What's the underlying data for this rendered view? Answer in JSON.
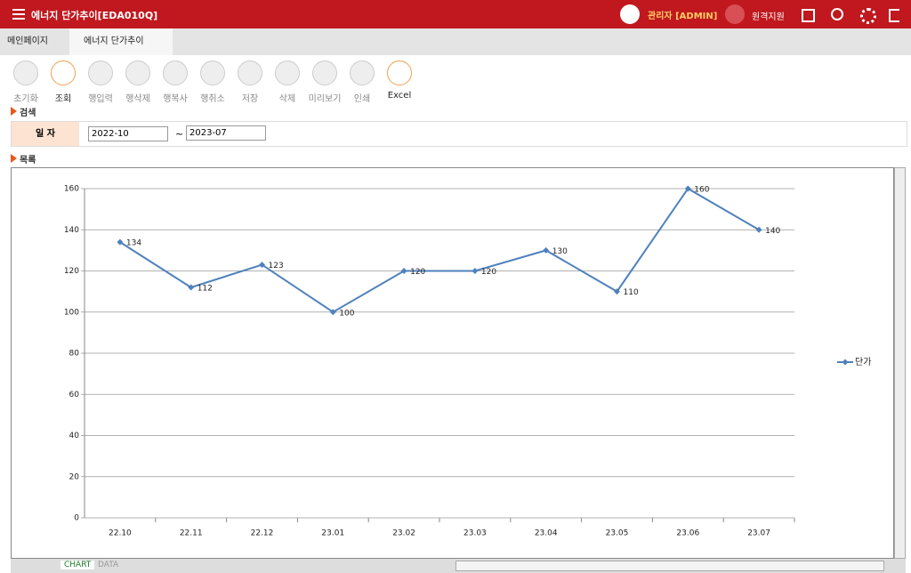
{
  "header": {
    "title": "에너지 단가추이[EDA010Q]",
    "user": "관리자 [ADMIN]",
    "support": "원격지원"
  },
  "tabs": [
    "메인페이지",
    "에너지 단가추이"
  ],
  "toolbar": [
    "초기화",
    "조회",
    "행입력",
    "행삭제",
    "행복사",
    "행취소",
    "저장",
    "삭제",
    "미리보기",
    "인쇄",
    "Excel"
  ],
  "search": {
    "section": "검색",
    "label": "일 자",
    "from": "2022-10",
    "separator": "~",
    "to": "2023-07"
  },
  "list": {
    "section": "목록"
  },
  "bottom_tabs": [
    "CHART",
    "DATA"
  ],
  "chart_data": {
    "type": "line",
    "categories": [
      "22.10",
      "22.11",
      "22.12",
      "23.01",
      "23.02",
      "23.03",
      "23.04",
      "23.05",
      "23.06",
      "23.07"
    ],
    "series": [
      {
        "name": "단가",
        "color": "#4f81bd",
        "values": [
          134,
          112,
          123,
          100,
          120,
          120,
          130,
          110,
          160,
          140
        ]
      }
    ],
    "ylim": [
      0,
      160
    ],
    "yticks": [
      0,
      20,
      40,
      60,
      80,
      100,
      120,
      140,
      160
    ],
    "grid": true,
    "legend": "right"
  }
}
